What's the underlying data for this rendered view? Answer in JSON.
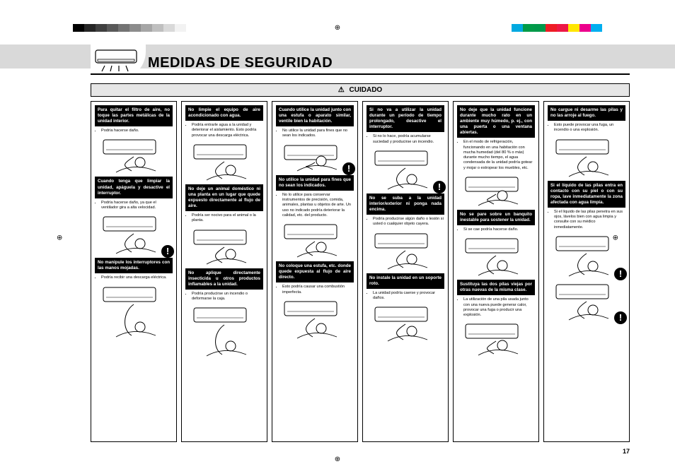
{
  "palette": {
    "grays": [
      "#000000",
      "#262626",
      "#404040",
      "#595959",
      "#737373",
      "#8c8c8c",
      "#a6a6a6",
      "#bfbfbf",
      "#d9d9d9",
      "#f2f2f2"
    ],
    "colors": [
      "#00a9e0",
      "#009b48",
      "#00984a",
      "#ee1c25",
      "#ed1846",
      "#ffe600",
      "#ec008c",
      "#00aeef"
    ]
  },
  "title": "MEDIDAS DE SEGURIDAD",
  "caution_label": "CUIDADO",
  "page_number": "17",
  "columns": [
    {
      "blocks": [
        {
          "head": "Para quitar el filtro de aire, no toque las partes metálicas de la unidad interior.",
          "notes": [
            "Podría hacerse daño."
          ],
          "fig_h": 54
        },
        {
          "head": "Cuando tenga que limpiar la unidad, apáguela y desactive el interruptor.",
          "notes": [
            "Podría hacerse daño, ya que el ventilador gira a alta velocidad."
          ],
          "fig_h": 60,
          "warn": "br"
        },
        {
          "head": "No manipule los interruptores con las manos mojadas.",
          "notes": [
            "Podría recibir una descarga eléctrica."
          ],
          "fig_h": 78
        }
      ]
    },
    {
      "blocks": [
        {
          "head": "No limpie el equipo de aire acondicionado con agua.",
          "notes": [
            "Podría entrarle agua a la unidad y deteriorar el aislamiento. Esto podría provocar una descarga eléctrica."
          ],
          "fig_h": 58
        },
        {
          "head": "No deje un animal doméstico ni una planta en un lugar que quede expuesto directamente al flujo de aire.",
          "notes": [
            "Podría ser nocivo para el animal o la planta."
          ],
          "fig_h": 56
        },
        {
          "head": "No aplique directamente insecticida u otros productos inflamables a la unidad.",
          "notes": [
            "Podría producirse un incendio o deformarse la caja."
          ],
          "fig_h": 76
        }
      ]
    },
    {
      "blocks": [
        {
          "head": "Cuando utilice la unidad junto con una estufa o aparato similar, ventile bien la habitación.",
          "notes": [
            "No utilice la unidad para fines que no sean los indicados."
          ],
          "fig_h": 44,
          "warn": "br"
        },
        {
          "head": "No utilice la unidad para fines que no sean los indicados.",
          "notes": [
            "No lo utilice para conservar instrumentos de precisión, comida, animales, plantas u objetos de arte. Un uso no indicado podría deteriorar la calidad, etc. del producto."
          ],
          "fig_h": 54
        },
        {
          "head": "No coloque una estufa, etc. donde quede expuesta al flujo de aire directo.",
          "notes": [
            "Esto podría causar una combustión imperfecta."
          ],
          "fig_h": 60
        }
      ]
    },
    {
      "blocks": [
        {
          "head": "Si no va a utilizar la unidad durante un período de tiempo prolongado, desactive el interruptor.",
          "notes": [
            "Si no lo hace, podría acumularse suciedad y producirse un incendio."
          ],
          "fig_h": 62,
          "warn": "br"
        },
        {
          "head": "No se suba a la unidad interior/exterior ni ponga nada encima.",
          "notes": [
            "Podría producirse algún daño o lesión si usted o cualquier objeto cayera."
          ],
          "fig_h": 58
        },
        {
          "head": "No instale la unidad en un soporte roto.",
          "notes": [
            "La unidad podría caerse y provocar daños."
          ],
          "fig_h": 56
        }
      ]
    },
    {
      "blocks": [
        {
          "head": "No deje que la unidad funcione durante mucho rato en un ambiente muy húmedo, p. ej., con una puerta o una ventana abiertas.",
          "notes": [
            "En el modo de refrigeración, funcionando en una habitación con mucha humedad (del 80 % o más) durante mucho tiempo, el agua condensada de la unidad podría gotear y mojar o estropear los muebles, etc."
          ],
          "fig_h": 48
        },
        {
          "head": "No se pare sobre un banquito inestable para sostener la unidad.",
          "notes": [
            "Si se cae podría hacerse daño."
          ],
          "fig_h": 60
        },
        {
          "head": "Sustituya las dos pilas viejas por otras nuevas de la misma clase.",
          "notes": [
            "La utilización de una pila usada junto con una nueva puede generar calor, provocar una fuga o producir una explosión."
          ],
          "fig_h": 52
        }
      ]
    },
    {
      "blocks": [
        {
          "head": "No cargue ni desarme las pilas y no las arroje al fuego.",
          "notes": [
            "Esto puede provocar una fuga, un incendio o una explosión."
          ],
          "fig_h": 60
        },
        {
          "head": "Si el líquido de las pilas entra en contacto con su piel o con su ropa, lave inmediatamente la zona afectada con agua limpia.",
          "notes": [
            "Si el líquido de las pilas penetra en sus ojos, lávelos bien con agua limpia y consulte con su médico inmediatamente."
          ],
          "fig_h": 64,
          "warn": "br"
        },
        {
          "head": "",
          "notes": [],
          "fig_h": 58,
          "warn": "br",
          "nohead": true
        }
      ]
    }
  ]
}
